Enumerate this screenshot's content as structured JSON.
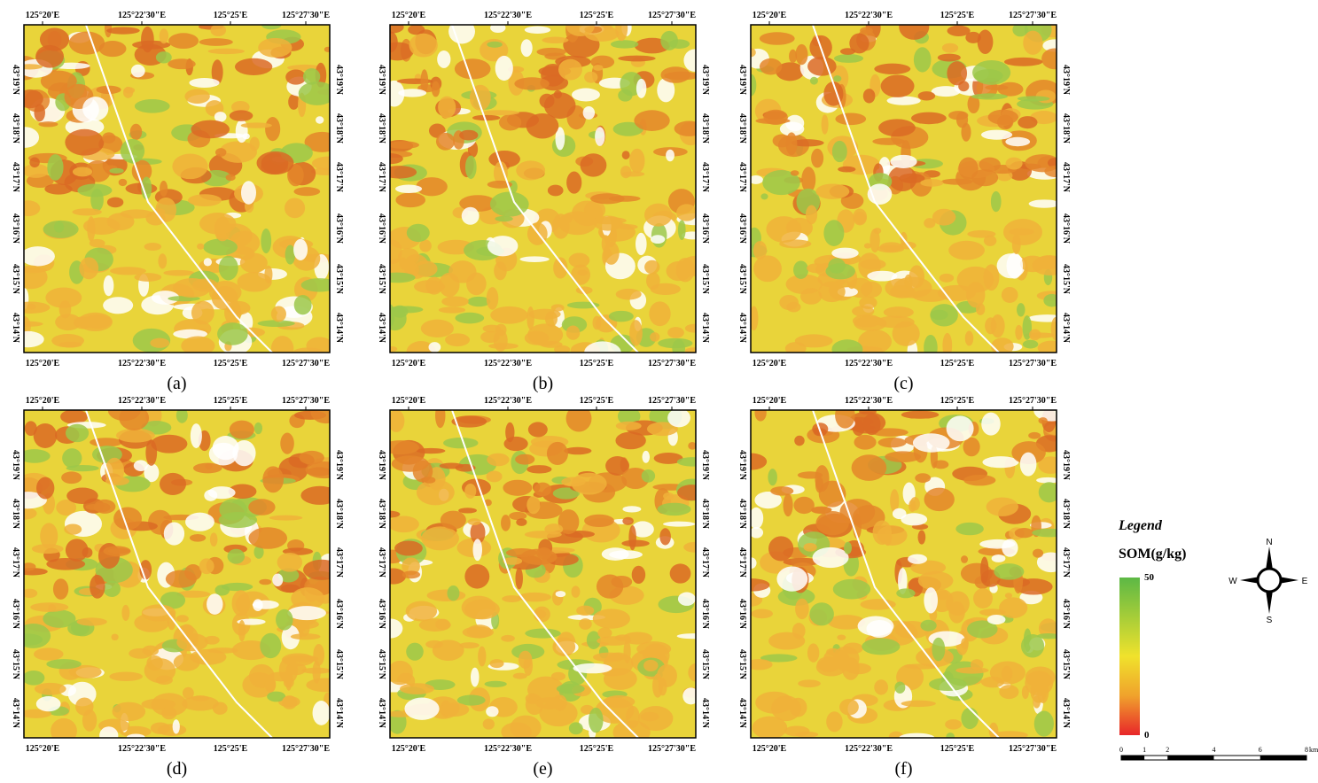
{
  "panels": [
    {
      "label": "(a)"
    },
    {
      "label": "(b)"
    },
    {
      "label": "(c)"
    },
    {
      "label": "(d)"
    },
    {
      "label": "(e)"
    },
    {
      "label": "(f)"
    }
  ],
  "x_labels": [
    "125°20'E",
    "125°22'30\"E",
    "125°25'E",
    "125°27'30\"E"
  ],
  "y_labels": [
    "43°19'N",
    "43°18'N",
    "43°17'N",
    "43°16'N",
    "43°15'N",
    "43°14'N"
  ],
  "legend": {
    "title": "Legend",
    "variable": "SOM(g/kg)",
    "max": 50,
    "min": 0
  },
  "compass": {
    "n": "N",
    "w": "W",
    "e": "E",
    "s": "S"
  },
  "scale_bar": {
    "ticks": [
      0,
      1,
      2,
      4,
      6,
      8
    ],
    "unit": "km"
  }
}
